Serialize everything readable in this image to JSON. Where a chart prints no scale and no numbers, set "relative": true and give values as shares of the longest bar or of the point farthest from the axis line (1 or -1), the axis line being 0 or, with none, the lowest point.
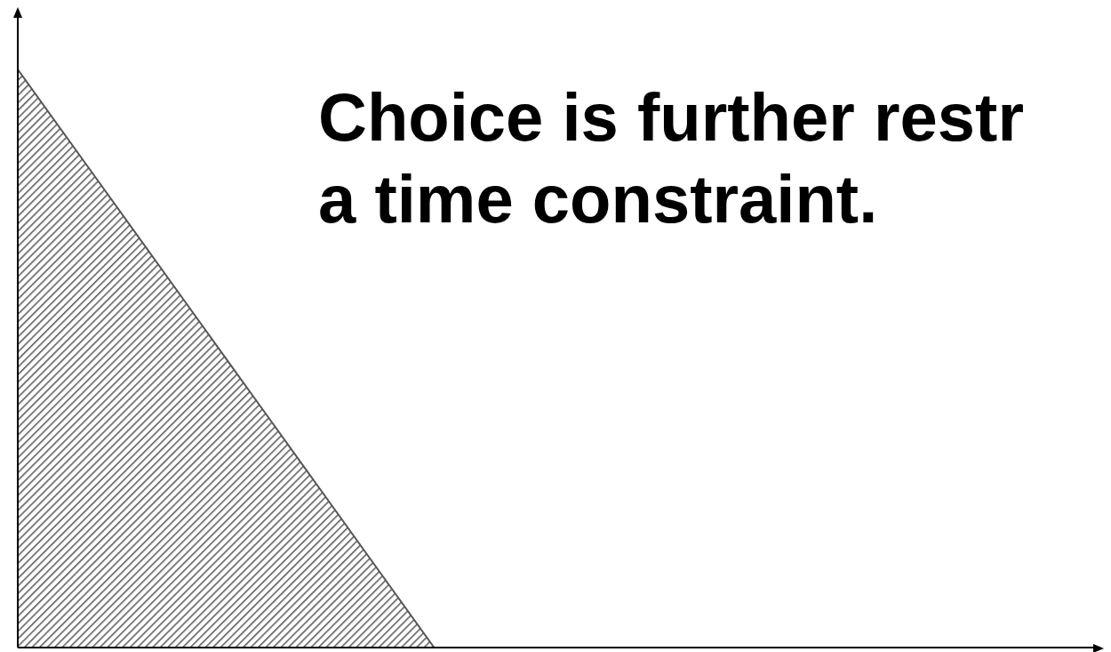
{
  "chart_data": {
    "type": "area",
    "relative": true,
    "categories": [
      null,
      null,
      null,
      null,
      null,
      null,
      null,
      null,
      null,
      null,
      null,
      null,
      null,
      null
    ],
    "series": [
      {
        "color": "#555555",
        "values": [
          1,
          0.8,
          0.6,
          0.4,
          0.2,
          0,
          null,
          null,
          null,
          null,
          null,
          null,
          null,
          null
        ]
      }
    ],
    "annotations": [
      "Choice is further restr a time constraint."
    ],
    "grid": false,
    "legend": false
  }
}
